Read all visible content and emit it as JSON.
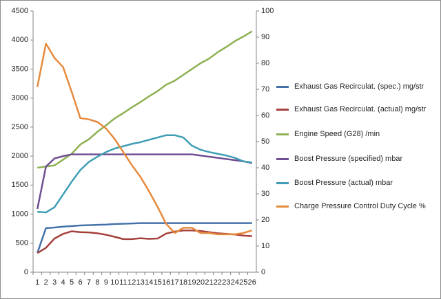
{
  "chart_data": {
    "type": "line",
    "categories": [
      1,
      2,
      3,
      4,
      5,
      6,
      7,
      8,
      9,
      10,
      11,
      12,
      13,
      14,
      15,
      16,
      17,
      18,
      19,
      20,
      21,
      22,
      23,
      24,
      25,
      26
    ],
    "ylim": [
      0,
      4500
    ],
    "yticks": [
      0,
      500,
      1000,
      1500,
      2000,
      2500,
      3000,
      3500,
      4000,
      4500
    ],
    "y2lim": [
      0,
      100
    ],
    "y2ticks": [
      0,
      10,
      20,
      30,
      40,
      50,
      60,
      70,
      80,
      90,
      100
    ],
    "grid": false,
    "legend": "right",
    "series": [
      {
        "name": "Exhaust Gas Recirculat. (spec.)  mg/str",
        "color": "#4472a8",
        "values": [
          330,
          760,
          770,
          785,
          795,
          805,
          810,
          815,
          820,
          830,
          835,
          840,
          845,
          845,
          845,
          845,
          845,
          845,
          845,
          845,
          845,
          845,
          845,
          845,
          845,
          845
        ]
      },
      {
        "name": "Exhaust Gas Recirculat. (actual)  mg/str",
        "color": "#a6403c",
        "values": [
          330,
          420,
          580,
          660,
          705,
          690,
          685,
          670,
          645,
          610,
          570,
          570,
          585,
          575,
          580,
          665,
          700,
          720,
          720,
          710,
          690,
          670,
          660,
          650,
          630,
          620
        ]
      },
      {
        "name": "Engine Speed (G28)  /min",
        "color": "#8db052",
        "values": [
          1800,
          1820,
          1840,
          1940,
          2040,
          2200,
          2290,
          2420,
          2530,
          2650,
          2740,
          2840,
          2930,
          3030,
          3120,
          3230,
          3300,
          3400,
          3500,
          3600,
          3680,
          3790,
          3880,
          3980,
          4060,
          4150
        ]
      },
      {
        "name": "Boost Pressure (specified)  mbar",
        "color": "#6f4f91",
        "values": [
          1090,
          1820,
          1960,
          2000,
          2030,
          2030,
          2030,
          2030,
          2030,
          2030,
          2030,
          2030,
          2030,
          2030,
          2030,
          2030,
          2030,
          2030,
          2030,
          2010,
          1990,
          1970,
          1950,
          1930,
          1910,
          1880
        ]
      },
      {
        "name": "Boost Pressure (actual)  mbar",
        "color": "#3f9eb5",
        "values": [
          1040,
          1030,
          1120,
          1340,
          1560,
          1760,
          1900,
          1990,
          2070,
          2130,
          2170,
          2210,
          2240,
          2280,
          2320,
          2360,
          2360,
          2320,
          2180,
          2110,
          2070,
          2040,
          2010,
          1970,
          1910,
          1890
        ]
      },
      {
        "name": "Charge Pressure Control Duty Cycle  %",
        "color": "#e68a3c",
        "axis": "y2",
        "values": [
          71,
          87.5,
          82,
          78.5,
          69,
          59,
          58.5,
          57.5,
          55,
          51,
          46,
          41,
          36.5,
          31,
          25,
          18.5,
          15,
          17,
          17,
          15,
          15,
          14.5,
          14.5,
          14.5,
          15,
          16
        ]
      }
    ]
  }
}
